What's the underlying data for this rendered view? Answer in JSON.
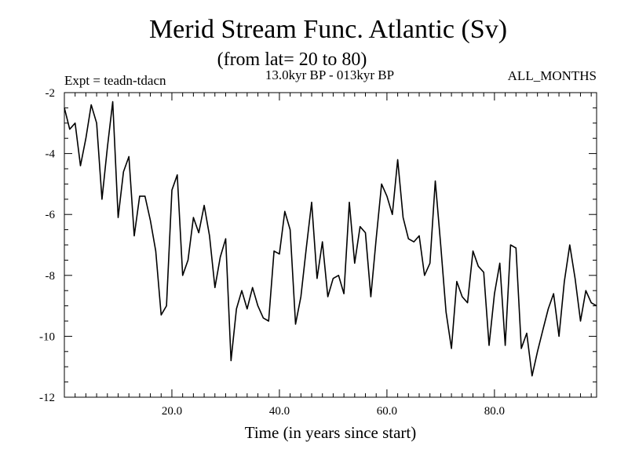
{
  "chart_data": {
    "type": "line",
    "title": "Merid Stream Func. Atlantic (Sv)",
    "subtitle": "(from lat= 20 to 80)",
    "experiment": "Expt = teadn-tdacn",
    "period": "13.0kyr BP - 013kyr BP",
    "season": "ALL_MONTHS",
    "xlabel": "Time (in years since start)",
    "ylabel": "",
    "xlim": [
      0,
      99
    ],
    "ylim": [
      -12,
      -2
    ],
    "xticks": [
      20,
      40,
      60,
      80
    ],
    "xtick_labels": [
      "20.0",
      "40.0",
      "60.0",
      "80.0"
    ],
    "yticks": [
      -12,
      -10,
      -8,
      -6,
      -4,
      -2
    ],
    "ytick_labels": [
      "-12",
      "-10",
      "-8",
      "-6",
      "-4",
      "-2"
    ],
    "grid": false,
    "line_color": "#000000",
    "series": [
      {
        "name": "Merid Stream Func. Atlantic",
        "x": [
          0,
          1,
          2,
          3,
          4,
          5,
          6,
          7,
          8,
          9,
          10,
          11,
          12,
          13,
          14,
          15,
          16,
          17,
          18,
          19,
          20,
          21,
          22,
          23,
          24,
          25,
          26,
          27,
          28,
          29,
          30,
          31,
          32,
          33,
          34,
          35,
          36,
          37,
          38,
          39,
          40,
          41,
          42,
          43,
          44,
          45,
          46,
          47,
          48,
          49,
          50,
          51,
          52,
          53,
          54,
          55,
          56,
          57,
          58,
          59,
          60,
          61,
          62,
          63,
          64,
          65,
          66,
          67,
          68,
          69,
          70,
          71,
          72,
          73,
          74,
          75,
          76,
          77,
          78,
          79,
          80,
          81,
          82,
          83,
          84,
          85,
          86,
          87,
          88,
          89,
          90,
          91,
          92,
          93,
          94,
          95,
          96,
          97,
          98,
          99
        ],
        "values": [
          -2.5,
          -3.2,
          -3.0,
          -4.4,
          -3.5,
          -2.4,
          -3.0,
          -5.5,
          -3.8,
          -2.3,
          -6.1,
          -4.6,
          -4.1,
          -6.7,
          -5.4,
          -5.4,
          -6.2,
          -7.2,
          -9.3,
          -9.0,
          -5.2,
          -4.7,
          -8.0,
          -7.5,
          -6.1,
          -6.6,
          -5.7,
          -6.7,
          -8.4,
          -7.4,
          -6.8,
          -10.8,
          -9.1,
          -8.5,
          -9.1,
          -8.4,
          -9.0,
          -9.4,
          -9.5,
          -7.2,
          -7.3,
          -5.9,
          -6.5,
          -9.6,
          -8.7,
          -7.1,
          -5.6,
          -8.1,
          -6.9,
          -8.7,
          -8.1,
          -8.0,
          -8.6,
          -5.6,
          -7.6,
          -6.4,
          -6.6,
          -8.7,
          -6.8,
          -5.0,
          -5.4,
          -6.0,
          -4.2,
          -6.1,
          -6.8,
          -6.9,
          -6.7,
          -8.0,
          -7.6,
          -4.9,
          -7.0,
          -9.2,
          -10.4,
          -8.2,
          -8.7,
          -8.9,
          -7.2,
          -7.7,
          -7.9,
          -10.3,
          -8.6,
          -7.6,
          -10.3,
          -7.0,
          -7.1,
          -10.4,
          -9.9,
          -11.3,
          -10.5,
          -9.8,
          -9.1,
          -8.6,
          -10.0,
          -8.2,
          -7.0,
          -8.1,
          -9.5,
          -8.5,
          -8.9,
          -9.0
        ]
      }
    ]
  }
}
